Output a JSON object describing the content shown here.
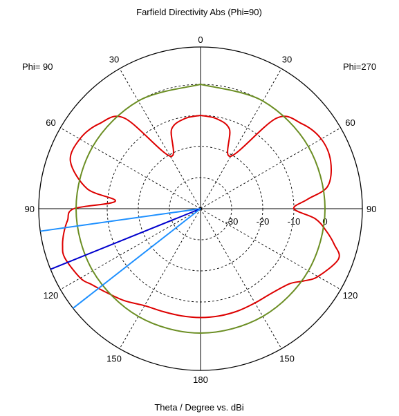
{
  "chart_data": {
    "type": "polar",
    "title": "Farfield Directivity Abs (Phi=90)",
    "xlabel": "Theta / Degree vs. dBi",
    "left_half_label": "Phi= 90",
    "right_half_label": "Phi=270",
    "angle_ticks": [
      {
        "label": "0",
        "theta": 0
      },
      {
        "label": "30",
        "theta": -30
      },
      {
        "label": "30",
        "theta": 30
      },
      {
        "label": "60",
        "theta": -60
      },
      {
        "label": "60",
        "theta": 60
      },
      {
        "label": "90",
        "theta": -90
      },
      {
        "label": "90",
        "theta": 90
      },
      {
        "label": "120",
        "theta": -120
      },
      {
        "label": "120",
        "theta": 120
      },
      {
        "label": "150",
        "theta": -150
      },
      {
        "label": "150",
        "theta": 150
      },
      {
        "label": "180",
        "theta": 180
      }
    ],
    "radial_ticks": [
      {
        "label": "-30",
        "value": -30
      },
      {
        "label": "-20",
        "value": -20
      },
      {
        "label": "-10",
        "value": -10
      },
      {
        "label": "0",
        "value": 0
      }
    ],
    "r_min": -40,
    "r_max": 12,
    "grid": true,
    "series": [
      {
        "color": "#dd0000",
        "theta_deg": [
          0,
          10,
          20,
          30,
          40,
          50,
          60,
          70,
          80,
          85,
          90,
          95,
          100,
          105,
          110,
          120,
          125,
          130,
          140,
          150,
          160,
          170,
          180,
          190,
          200,
          210,
          220,
          230,
          235,
          240,
          250,
          255,
          260,
          265,
          270,
          275,
          280,
          290,
          300,
          310,
          320,
          330,
          340,
          350,
          360
        ],
        "dbi": [
          -10,
          -10.6,
          -12.8,
          -20.5,
          -2,
          2.5,
          4.8,
          4.5,
          1.5,
          -5.5,
          -10,
          -3,
          1,
          4.5,
          7.2,
          3.6,
          0.5,
          -2.5,
          -4.5,
          -5,
          -5,
          -5,
          -5,
          -5,
          -4.8,
          -4,
          -1.5,
          1,
          2.6,
          4.6,
          6.4,
          5.9,
          4.6,
          2.9,
          0.7,
          -12.5,
          -3,
          4.5,
          4.8,
          2.5,
          -2,
          -20.5,
          -12.8,
          -10.6,
          -10
        ]
      },
      {
        "color": "#6b8e23",
        "theta_deg": [
          0,
          30,
          60,
          90,
          120,
          150,
          180,
          210,
          240,
          270,
          300,
          330,
          360
        ],
        "dbi": [
          0,
          0,
          0,
          0,
          0,
          0,
          0,
          0,
          0,
          0,
          0,
          0,
          0
        ]
      }
    ],
    "markers": [
      {
        "color": "#1e90ff",
        "theta": -98
      },
      {
        "color": "#0000cd",
        "theta": -112
      },
      {
        "color": "#1e90ff",
        "theta": -128
      }
    ]
  }
}
